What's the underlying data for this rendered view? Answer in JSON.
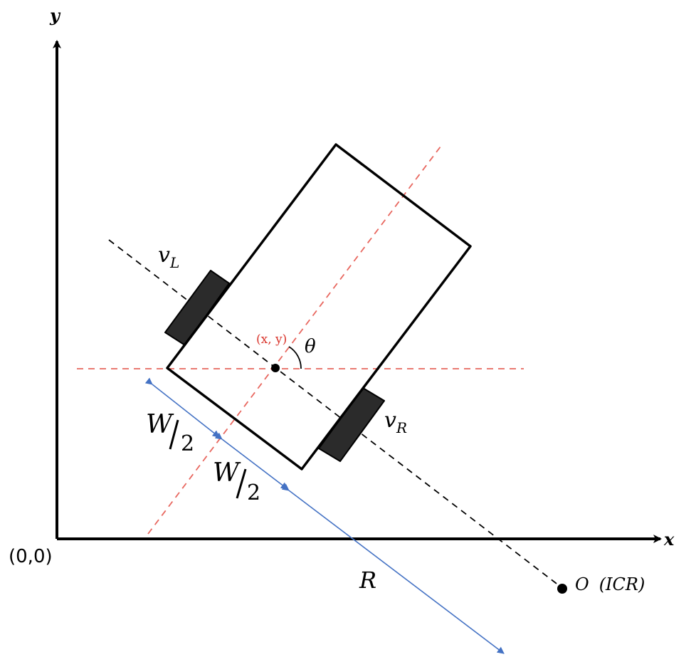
{
  "axes": {
    "x_label": "x",
    "y_label": "y",
    "origin_label": "(0,0)"
  },
  "labels": {
    "v_left": "v",
    "v_left_sub": "L",
    "v_right": "v",
    "v_right_sub": "R",
    "center": "(x, y)",
    "theta": "θ",
    "half_width_1": "W",
    "half_width_1_den": "2",
    "half_width_2": "W",
    "half_width_2_den": "2",
    "radius": "R",
    "icr_point": "O",
    "icr_text": "(ICR)"
  },
  "colors": {
    "axis": "#000000",
    "robot_body": "#000000",
    "wheel_fill": "#2b2b2b",
    "heading_line": "#e8675f",
    "axle_line": "#000000",
    "dimension": "#4472c4",
    "center_label": "#d9342b"
  }
}
